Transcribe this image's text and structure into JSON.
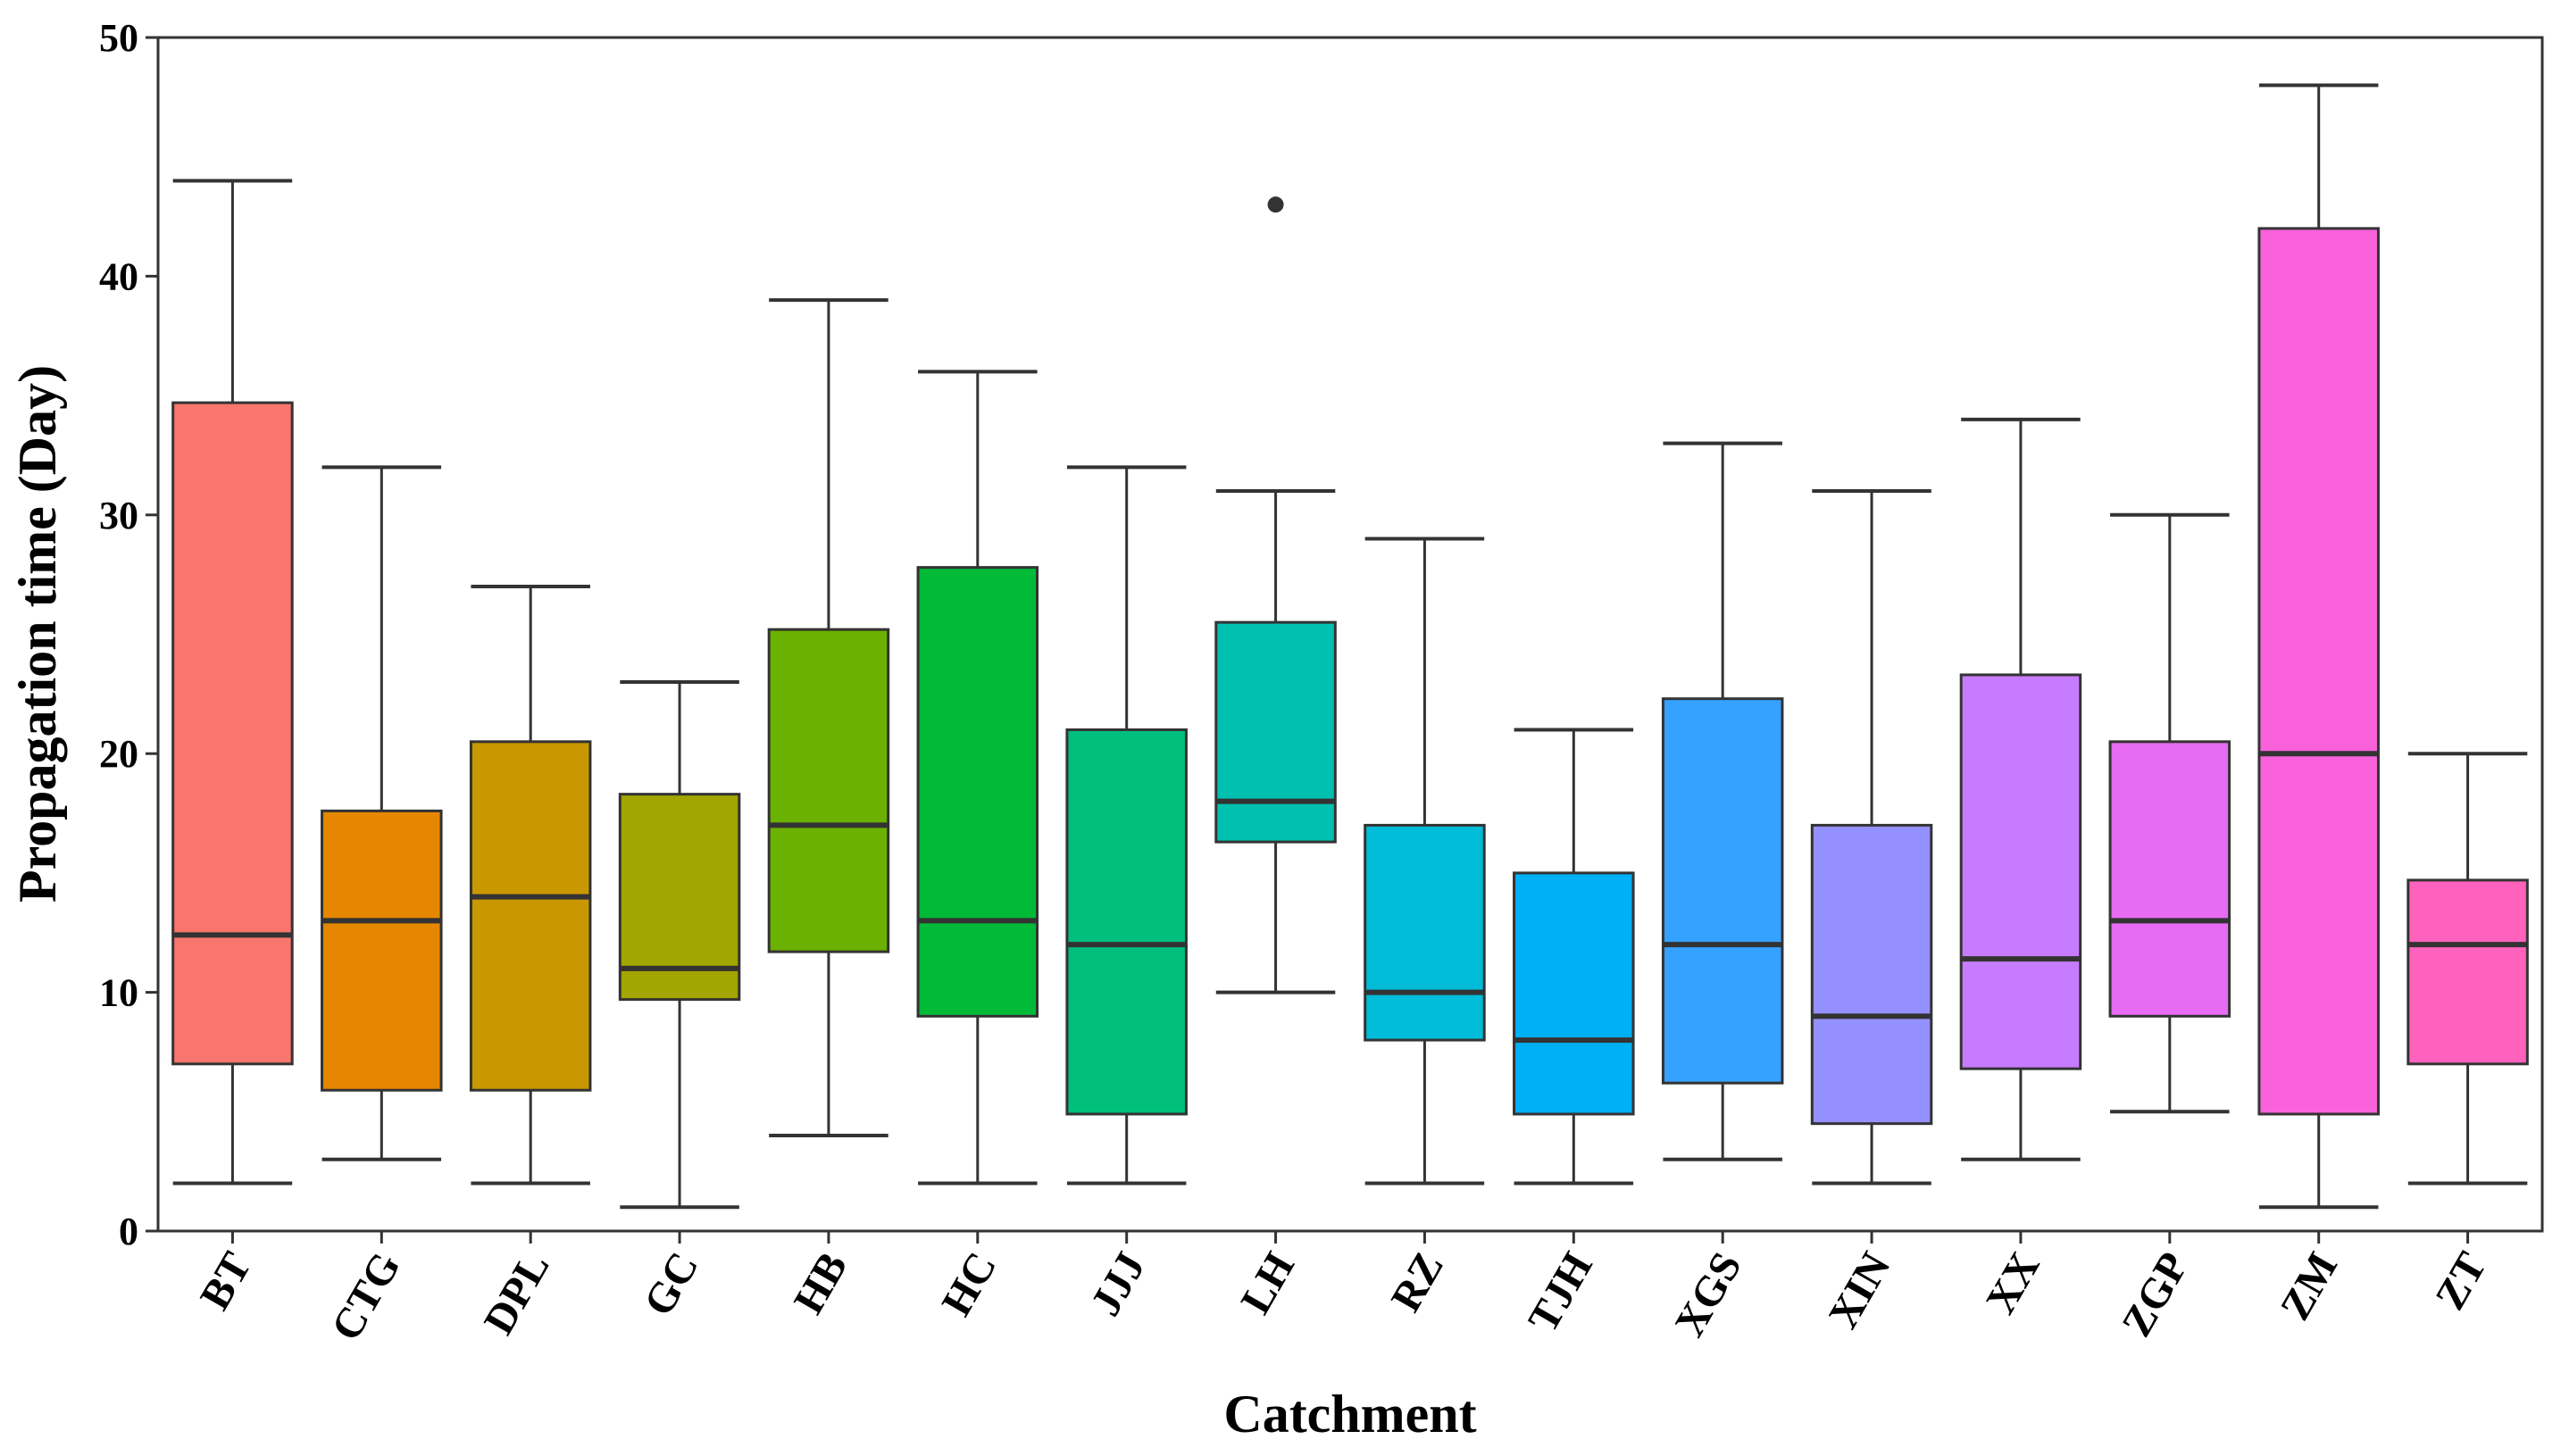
{
  "chart_data": {
    "type": "boxplot",
    "title": "",
    "xlabel": "Catchment",
    "ylabel": "Propagation time (Day)",
    "ylim": [
      0,
      50
    ],
    "yticks": [
      0,
      10,
      20,
      30,
      40,
      50
    ],
    "grid": false,
    "series": [
      {
        "name": "BT",
        "color": "#F8766D",
        "min": 2,
        "q1": 7.0,
        "median": 12.4,
        "q3": 34.7,
        "max": 44,
        "outliers": []
      },
      {
        "name": "CTG",
        "color": "#E58700",
        "min": 3,
        "q1": 5.9,
        "median": 13.0,
        "q3": 17.6,
        "max": 32,
        "outliers": []
      },
      {
        "name": "DPL",
        "color": "#C99800",
        "min": 2,
        "q1": 5.9,
        "median": 14.0,
        "q3": 20.5,
        "max": 27,
        "outliers": []
      },
      {
        "name": "GC",
        "color": "#A3A500",
        "min": 1,
        "q1": 9.7,
        "median": 11.0,
        "q3": 18.3,
        "max": 23,
        "outliers": []
      },
      {
        "name": "HB",
        "color": "#6BB100",
        "min": 4,
        "q1": 11.7,
        "median": 17.0,
        "q3": 25.2,
        "max": 39,
        "outliers": []
      },
      {
        "name": "HC",
        "color": "#00BA38",
        "min": 2,
        "q1": 9.0,
        "median": 13.0,
        "q3": 27.8,
        "max": 36,
        "outliers": []
      },
      {
        "name": "JJJ",
        "color": "#00BF7D",
        "min": 2,
        "q1": 4.9,
        "median": 12.0,
        "q3": 21.0,
        "max": 32,
        "outliers": []
      },
      {
        "name": "LH",
        "color": "#00C0AF",
        "min": 10,
        "q1": 16.3,
        "median": 18.0,
        "q3": 25.5,
        "max": 31,
        "outliers": [
          43
        ]
      },
      {
        "name": "RZ",
        "color": "#00BCD8",
        "min": 2,
        "q1": 8.0,
        "median": 10.0,
        "q3": 17.0,
        "max": 29,
        "outliers": []
      },
      {
        "name": "TJH",
        "color": "#00B0F6",
        "min": 2,
        "q1": 4.9,
        "median": 8.0,
        "q3": 15.0,
        "max": 21,
        "outliers": []
      },
      {
        "name": "XGS",
        "color": "#35A2FF",
        "min": 3,
        "q1": 6.2,
        "median": 12.0,
        "q3": 22.3,
        "max": 33,
        "outliers": []
      },
      {
        "name": "XIN",
        "color": "#9590FF",
        "min": 2,
        "q1": 4.5,
        "median": 9.0,
        "q3": 17.0,
        "max": 31,
        "outliers": []
      },
      {
        "name": "XX",
        "color": "#C77CFF",
        "min": 3,
        "q1": 6.8,
        "median": 11.4,
        "q3": 23.3,
        "max": 34,
        "outliers": []
      },
      {
        "name": "ZGP",
        "color": "#E76BF3",
        "min": 5,
        "q1": 9.0,
        "median": 13.0,
        "q3": 20.5,
        "max": 30,
        "outliers": []
      },
      {
        "name": "ZM",
        "color": "#FA62DB",
        "min": 1,
        "q1": 4.9,
        "median": 20.0,
        "q3": 42.0,
        "max": 48,
        "outliers": []
      },
      {
        "name": "ZT",
        "color": "#FF62BC",
        "min": 2,
        "q1": 7.0,
        "median": 12.0,
        "q3": 14.7,
        "max": 20,
        "outliers": []
      }
    ]
  }
}
